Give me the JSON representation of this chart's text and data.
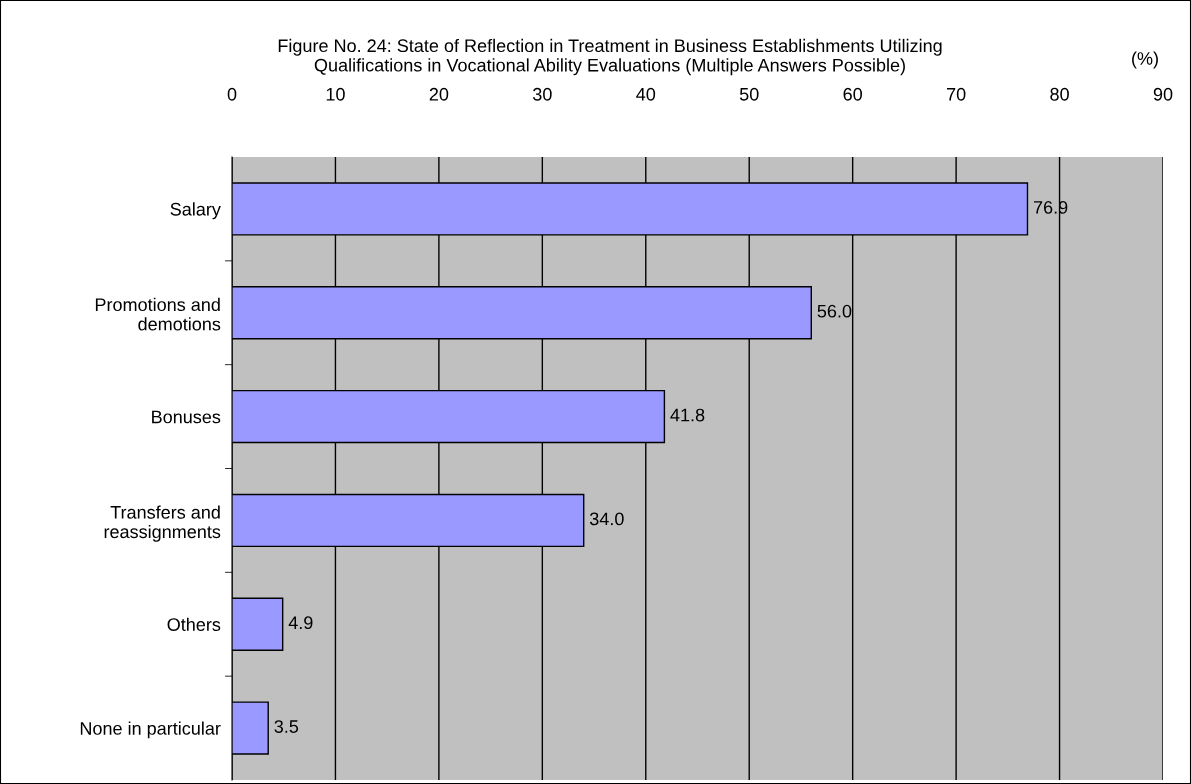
{
  "chart_data": {
    "type": "bar",
    "orientation": "horizontal",
    "title": "Figure No. 24: State of Reflection in Treatment in Business Establishments Utilizing\nQualifications in Vocational Ability Evaluations (Multiple Answers Possible)",
    "xlabel": "(%)",
    "categories": [
      "Salary",
      "Promotions and\ndemotions",
      "Bonuses",
      "Transfers and\nreassignments",
      "Others",
      "None in particular"
    ],
    "values": [
      76.9,
      56.0,
      41.8,
      34.0,
      4.9,
      3.5
    ],
    "color": "#9999ff",
    "xlim": [
      0,
      90
    ],
    "xticks": [
      0,
      10,
      20,
      30,
      40,
      50,
      60,
      70,
      80,
      90
    ],
    "value_labels": [
      "76.9",
      "56.0",
      "41.8",
      "34.0",
      "4.9",
      "3.5"
    ],
    "grid": "x"
  }
}
